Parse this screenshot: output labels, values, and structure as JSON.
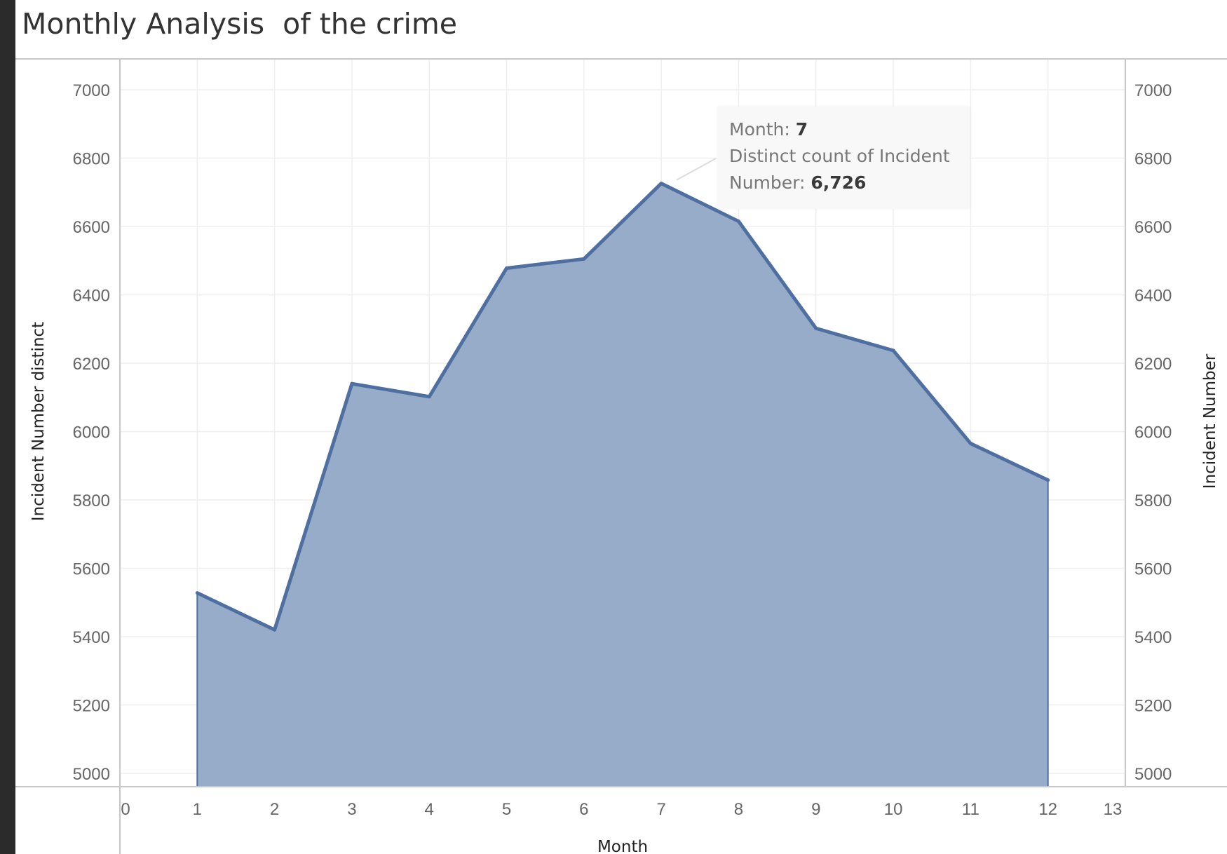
{
  "chart_data": {
    "type": "area",
    "title": "Monthly Analysis  of the crime",
    "xlabel": "Month",
    "ylabel": "Incident Number distinct",
    "ylabel_right": "Incident Number",
    "xlim": [
      0,
      13
    ],
    "ylim": [
      5000,
      7000
    ],
    "x_ticks": [
      0,
      1,
      2,
      3,
      4,
      5,
      6,
      7,
      8,
      9,
      10,
      11,
      12,
      13
    ],
    "y_ticks": [
      5000,
      5200,
      5400,
      5600,
      5800,
      6000,
      6200,
      6400,
      6600,
      6800,
      7000
    ],
    "x": [
      1,
      2,
      3,
      4,
      5,
      6,
      7,
      8,
      9,
      10,
      11,
      12
    ],
    "values": [
      5528,
      5420,
      6140,
      6102,
      6478,
      6505,
      6726,
      6615,
      6302,
      6237,
      5965,
      5858
    ],
    "grid": true,
    "colors": {
      "line": "#4e6f9f",
      "fill": "#97acc8"
    }
  },
  "tooltip": {
    "month_label": "Month: ",
    "month_value": "7",
    "measure_label_line1": "Distinct count of Incident",
    "measure_label_line2": "Number: ",
    "measure_value": "6,726"
  }
}
